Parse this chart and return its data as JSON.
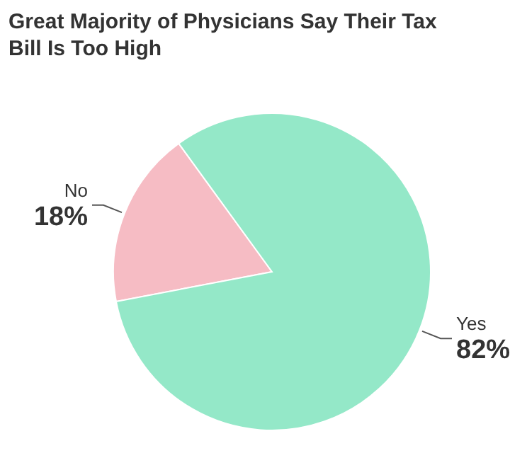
{
  "chart_data": {
    "type": "pie",
    "title": "Great Majority of Physicians Say Their Tax Bill Is Too High",
    "categories": [
      "No",
      "Yes"
    ],
    "values": [
      18,
      82
    ],
    "colors": [
      "#f6bcc4",
      "#94e8c8"
    ],
    "value_labels": [
      "18%",
      "82%"
    ]
  }
}
